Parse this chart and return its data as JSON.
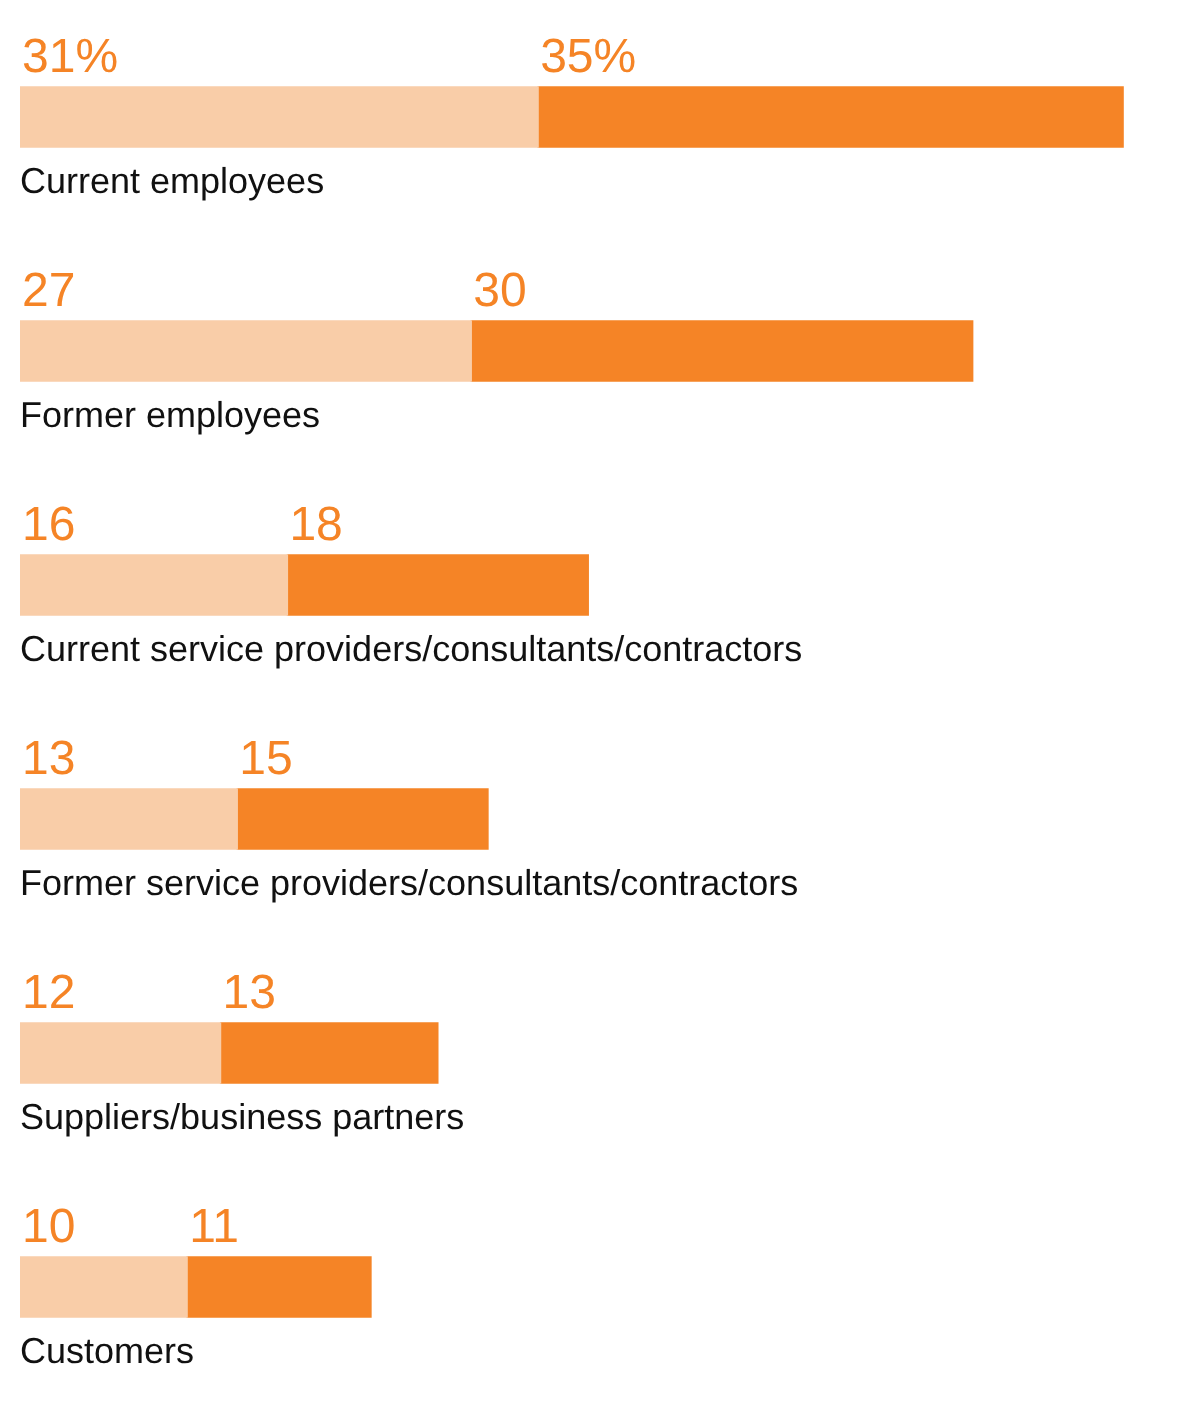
{
  "chart_data": {
    "type": "bar",
    "orientation": "horizontal",
    "stacked": true,
    "categories": [
      "Current employees",
      "Former employees",
      "Current service providers/consultants/contractors",
      "Former service providers/consultants/contractors",
      "Suppliers/business partners",
      "Customers"
    ],
    "series": [
      {
        "color": "#f9cda8",
        "values": [
          31,
          27,
          16,
          13,
          12,
          10
        ],
        "value_labels": [
          "31%",
          "27",
          "16",
          "13",
          "12",
          "10"
        ]
      },
      {
        "color": "#f58426",
        "values": [
          35,
          30,
          18,
          15,
          13,
          11
        ],
        "value_labels": [
          "35%",
          "30",
          "18",
          "15",
          "13",
          "11"
        ]
      }
    ]
  }
}
